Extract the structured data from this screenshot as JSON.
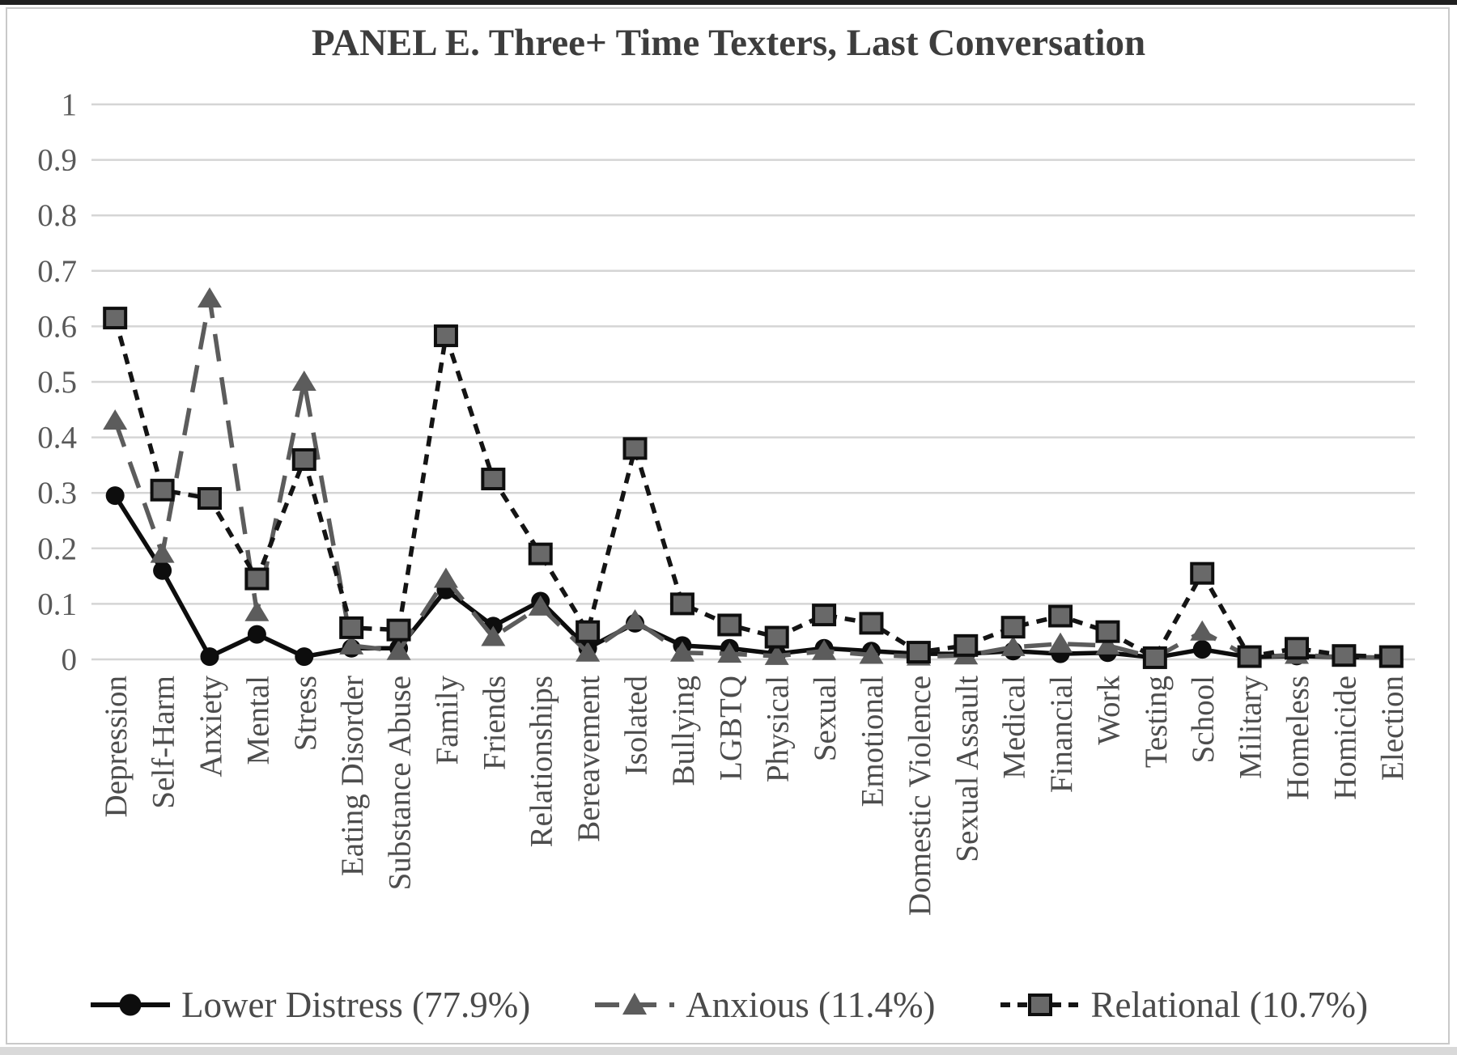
{
  "page": {
    "title": "PANEL E. Three+ Time Texters, Last Conversation"
  },
  "chart_data": {
    "type": "line",
    "title": "PANEL E. Three+ Time Texters, Last Conversation",
    "categories": [
      "Depression",
      "Self-Harm",
      "Anxiety",
      "Mental",
      "Stress",
      "Eating Disorder",
      "Substance Abuse",
      "Family",
      "Friends",
      "Relationships",
      "Bereavement",
      "Isolated",
      "Bullying",
      "LGBTQ",
      "Physical",
      "Sexual",
      "Emotional",
      "Domestic Violence",
      "Sexual Assault",
      "Medical",
      "Financial",
      "Work",
      "Testing",
      "School",
      "Military",
      "Homeless",
      "Homicide",
      "Election"
    ],
    "series": [
      {
        "name": "Lower Distress (77.9%)",
        "marker": "circle",
        "line_style": "solid",
        "color": "#0d0d0d",
        "marker_fill": "#0d0d0d",
        "values": [
          0.295,
          0.16,
          0.005,
          0.045,
          0.005,
          0.02,
          0.02,
          0.125,
          0.06,
          0.105,
          0.02,
          0.065,
          0.025,
          0.02,
          0.01,
          0.02,
          0.015,
          0.01,
          0.01,
          0.015,
          0.01,
          0.012,
          0.003,
          0.018,
          0.004,
          0.006,
          0.004,
          0.003
        ]
      },
      {
        "name": "Anxious (11.4%)",
        "marker": "triangle",
        "line_style": "long-dash",
        "color": "#5c5c5c",
        "marker_fill": "#5c5c5c",
        "values": [
          0.43,
          0.19,
          0.65,
          0.085,
          0.5,
          0.025,
          0.015,
          0.145,
          0.04,
          0.095,
          0.012,
          0.07,
          0.012,
          0.01,
          0.006,
          0.015,
          0.008,
          0.005,
          0.007,
          0.022,
          0.028,
          0.025,
          0.003,
          0.05,
          0.004,
          0.008,
          0.004,
          0.003
        ]
      },
      {
        "name": "Relational (10.7%)",
        "marker": "square",
        "line_style": "short-dash",
        "color": "#141414",
        "marker_fill": "#696969",
        "values": [
          0.615,
          0.305,
          0.29,
          0.145,
          0.36,
          0.057,
          0.053,
          0.583,
          0.325,
          0.19,
          0.05,
          0.38,
          0.1,
          0.062,
          0.04,
          0.08,
          0.065,
          0.013,
          0.025,
          0.058,
          0.078,
          0.05,
          0.003,
          0.155,
          0.005,
          0.02,
          0.007,
          0.005
        ]
      }
    ],
    "ylim": [
      0,
      1
    ],
    "ytick_step": 0.1,
    "ytick_labels": [
      "0",
      "0.1",
      "0.2",
      "0.3",
      "0.4",
      "0.5",
      "0.6",
      "0.7",
      "0.8",
      "0.9",
      "1"
    ],
    "xlabel": "",
    "ylabel": "",
    "grid": "horizontal",
    "legend_position": "bottom",
    "colors": {
      "gridline": "#d5d5d5",
      "tick_label": "#595959",
      "axis_label": "#4d4d4d",
      "title": "#3d3d3d"
    }
  }
}
